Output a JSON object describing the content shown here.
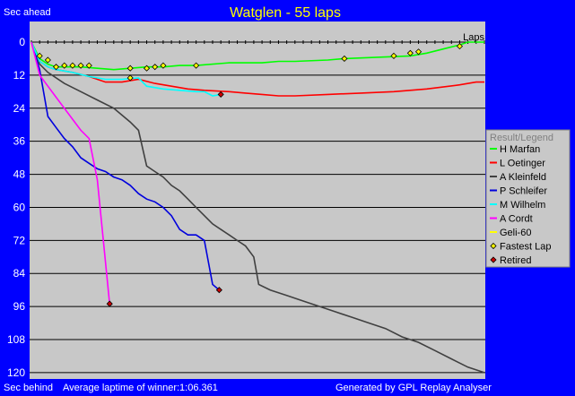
{
  "header": {
    "title": "Watglen - 55 laps",
    "top_left": "Sec ahead",
    "bottom_left": "Sec behind",
    "avg_laptime": "Average laptime of winner:1:06.361",
    "generated_by": "Generated by GPL Replay Analyser"
  },
  "colors": {
    "background": "#0000ff",
    "plot": "#c8c8c8",
    "title": "#ffff00",
    "legend_bg": "#c8c8c8"
  },
  "chart_data": {
    "type": "line",
    "title": "Watglen - 55 laps",
    "x_label": "Laps",
    "y_label_top": "Sec ahead",
    "y_label_bottom": "Sec behind",
    "x_range": [
      0,
      55
    ],
    "y_range": [
      0,
      121
    ],
    "y_inverted": true,
    "y_ticks": [
      0,
      12,
      24,
      36,
      48,
      60,
      72,
      84,
      96,
      108,
      120
    ],
    "grid": "horizontal",
    "legend_title": "Result/Legend",
    "legend_position": "right",
    "series": [
      {
        "name": "H Marfan",
        "color": "#00ff00",
        "points": [
          [
            0,
            0
          ],
          [
            1,
            6
          ],
          [
            2,
            8
          ],
          [
            3,
            9
          ],
          [
            4,
            9
          ],
          [
            6,
            9
          ],
          [
            8,
            9.5
          ],
          [
            10,
            10
          ],
          [
            12,
            9.5
          ],
          [
            14,
            9
          ],
          [
            16,
            9
          ],
          [
            18,
            8.5
          ],
          [
            20,
            8.5
          ],
          [
            24,
            7.5
          ],
          [
            28,
            7.5
          ],
          [
            30,
            7
          ],
          [
            32,
            7
          ],
          [
            36,
            6.5
          ],
          [
            38,
            6
          ],
          [
            42,
            5.5
          ],
          [
            46,
            5
          ],
          [
            48,
            4
          ],
          [
            50,
            2.5
          ],
          [
            52,
            1
          ],
          [
            53,
            0
          ],
          [
            55,
            0
          ]
        ]
      },
      {
        "name": "L Oetinger",
        "color": "#ff0000",
        "points": [
          [
            0,
            0
          ],
          [
            1,
            7
          ],
          [
            2,
            9
          ],
          [
            3,
            10
          ],
          [
            5,
            11
          ],
          [
            7,
            12.5
          ],
          [
            9,
            14.5
          ],
          [
            11,
            14.5
          ],
          [
            13,
            13.5
          ],
          [
            15,
            15
          ],
          [
            17,
            16
          ],
          [
            19,
            17
          ],
          [
            21,
            17.5
          ],
          [
            24,
            18
          ],
          [
            26,
            18.5
          ],
          [
            28,
            19
          ],
          [
            30,
            19.5
          ],
          [
            32,
            19.5
          ],
          [
            36,
            19
          ],
          [
            40,
            18.5
          ],
          [
            44,
            18
          ],
          [
            48,
            17
          ],
          [
            52,
            15.5
          ],
          [
            54,
            14.5
          ],
          [
            55,
            14.5
          ]
        ]
      },
      {
        "name": "A Kleinfeld",
        "color": "#404040",
        "points": [
          [
            0,
            0
          ],
          [
            1,
            8
          ],
          [
            2,
            11
          ],
          [
            4,
            15
          ],
          [
            6,
            18
          ],
          [
            8,
            21
          ],
          [
            10,
            24
          ],
          [
            12,
            29
          ],
          [
            13,
            32
          ],
          [
            14,
            45
          ],
          [
            15,
            47
          ],
          [
            16,
            49
          ],
          [
            17,
            52
          ],
          [
            18,
            54
          ],
          [
            19,
            57
          ],
          [
            20,
            60
          ],
          [
            21,
            63
          ],
          [
            22,
            66
          ],
          [
            23,
            68
          ],
          [
            24,
            70
          ],
          [
            25,
            72
          ],
          [
            26,
            74
          ],
          [
            27,
            78
          ],
          [
            27.6,
            88
          ],
          [
            29,
            90
          ],
          [
            31,
            92
          ],
          [
            33,
            94
          ],
          [
            35,
            96
          ],
          [
            37,
            98
          ],
          [
            39,
            100
          ],
          [
            41,
            102
          ],
          [
            43,
            104
          ],
          [
            45,
            107
          ],
          [
            47,
            109
          ],
          [
            49,
            112
          ],
          [
            51,
            115
          ],
          [
            53,
            118
          ],
          [
            55,
            120
          ]
        ]
      },
      {
        "name": "P Schleifer",
        "color": "#0000dd",
        "points": [
          [
            0,
            0
          ],
          [
            1,
            10
          ],
          [
            2,
            27
          ],
          [
            3,
            31
          ],
          [
            4,
            35
          ],
          [
            5,
            38
          ],
          [
            6,
            42
          ],
          [
            7,
            44
          ],
          [
            8,
            46
          ],
          [
            9,
            47
          ],
          [
            10,
            49
          ],
          [
            11,
            50
          ],
          [
            12,
            52
          ],
          [
            13,
            55
          ],
          [
            14,
            57
          ],
          [
            15,
            58
          ],
          [
            16,
            60
          ],
          [
            17,
            63
          ],
          [
            18,
            68
          ],
          [
            19,
            70
          ],
          [
            20,
            70
          ],
          [
            21,
            72
          ],
          [
            22,
            88
          ],
          [
            22.8,
            90
          ]
        ]
      },
      {
        "name": "M Wilhelm",
        "color": "#00ffff",
        "points": [
          [
            0,
            0
          ],
          [
            1,
            7
          ],
          [
            2,
            9
          ],
          [
            3,
            10
          ],
          [
            5,
            11
          ],
          [
            7,
            12.5
          ],
          [
            9,
            13.5
          ],
          [
            11,
            13.5
          ],
          [
            13,
            13
          ],
          [
            14,
            16
          ],
          [
            16,
            17
          ],
          [
            18,
            17.5
          ],
          [
            20,
            18
          ],
          [
            21,
            18
          ],
          [
            22,
            19.5
          ],
          [
            23,
            19
          ]
        ]
      },
      {
        "name": "A Cordt",
        "color": "#ff00ff",
        "points": [
          [
            0,
            0
          ],
          [
            1,
            12
          ],
          [
            2,
            16
          ],
          [
            3,
            20
          ],
          [
            4,
            24
          ],
          [
            5,
            28
          ],
          [
            6,
            32
          ],
          [
            7,
            35
          ],
          [
            8,
            50
          ],
          [
            9.5,
            95
          ]
        ]
      },
      {
        "name": "Geli-60",
        "color": "#ffff00",
        "points": []
      }
    ],
    "markers": {
      "fastest_lap": {
        "label": "Fastest Lap",
        "color": "#ffff00",
        "points": [
          [
            1,
            5
          ],
          [
            2,
            6.5
          ],
          [
            3,
            9
          ],
          [
            4,
            8.5
          ],
          [
            5,
            8.5
          ],
          [
            6,
            8.5
          ],
          [
            7,
            8.5
          ],
          [
            12,
            9.5
          ],
          [
            14,
            9.5
          ],
          [
            15,
            9
          ],
          [
            16,
            8.5
          ],
          [
            20,
            8.5
          ],
          [
            38,
            6
          ],
          [
            44,
            5
          ],
          [
            46,
            4
          ],
          [
            47,
            3.5
          ],
          [
            52,
            1.5
          ],
          [
            12,
            13
          ]
        ]
      },
      "retired": {
        "label": "Retired",
        "color": "#cc0000",
        "points": [
          [
            23,
            19
          ],
          [
            22.8,
            90
          ],
          [
            9.5,
            95
          ]
        ]
      }
    }
  }
}
